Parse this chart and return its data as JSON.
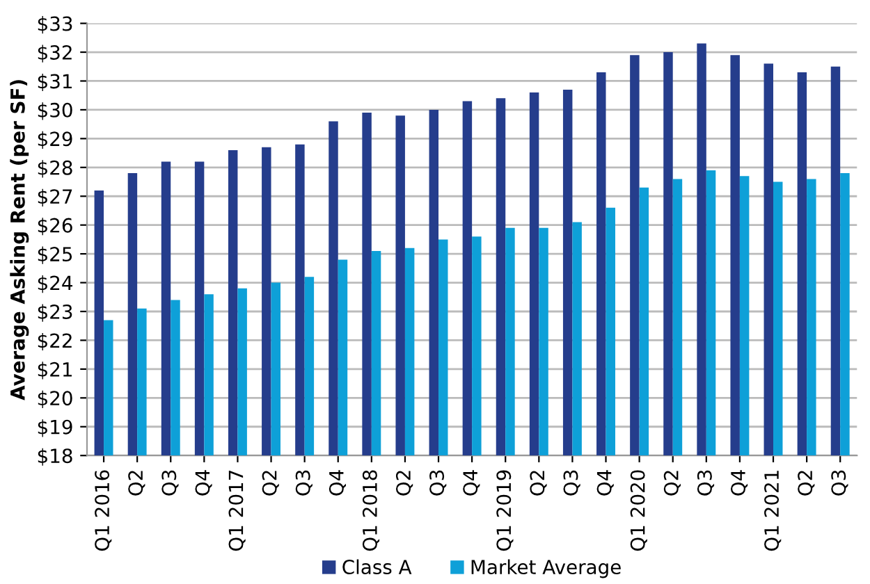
{
  "chart_data": {
    "type": "bar",
    "ylabel": "Average Asking Rent (per SF)",
    "categories": [
      "Q1 2016",
      "Q2",
      "Q3",
      "Q4",
      "Q1 2017",
      "Q2",
      "Q3",
      "Q4",
      "Q1 2018",
      "Q2",
      "Q3",
      "Q4",
      "Q1 2019",
      "Q2",
      "Q3",
      "Q4",
      "Q1 2020",
      "Q2",
      "Q3",
      "Q4",
      "Q1 2021",
      "Q2",
      "Q3"
    ],
    "series": [
      {
        "name": "Class A",
        "color": "#253d8c",
        "values": [
          27.2,
          27.8,
          28.2,
          28.2,
          28.6,
          28.7,
          28.8,
          29.6,
          29.9,
          29.8,
          30.0,
          30.3,
          30.4,
          30.6,
          30.7,
          31.3,
          31.9,
          32.0,
          32.3,
          31.9,
          31.6,
          31.3,
          31.5
        ]
      },
      {
        "name": "Market Average",
        "color": "#0ea0d8",
        "values": [
          22.7,
          23.1,
          23.4,
          23.6,
          23.8,
          24.0,
          24.2,
          24.8,
          25.1,
          25.2,
          25.5,
          25.6,
          25.9,
          25.9,
          26.1,
          26.6,
          27.3,
          27.6,
          27.9,
          27.7,
          27.5,
          27.6,
          27.8
        ]
      }
    ],
    "ylim": [
      18,
      33
    ],
    "yticks": [
      {
        "value": 18,
        "label": "$18"
      },
      {
        "value": 19,
        "label": "$19"
      },
      {
        "value": 20,
        "label": "$20"
      },
      {
        "value": 21,
        "label": "$21"
      },
      {
        "value": 22,
        "label": "$22"
      },
      {
        "value": 23,
        "label": "$23"
      },
      {
        "value": 24,
        "label": "$24"
      },
      {
        "value": 25,
        "label": "$25"
      },
      {
        "value": 26,
        "label": "$26"
      },
      {
        "value": 27,
        "label": "$27"
      },
      {
        "value": 28,
        "label": "$28"
      },
      {
        "value": 29,
        "label": "$29"
      },
      {
        "value": 30,
        "label": "$30"
      },
      {
        "value": 31,
        "label": "$31"
      },
      {
        "value": 32,
        "label": "$32"
      },
      {
        "value": 33,
        "label": "$33"
      }
    ],
    "grid": "y",
    "legend": "bottom"
  }
}
